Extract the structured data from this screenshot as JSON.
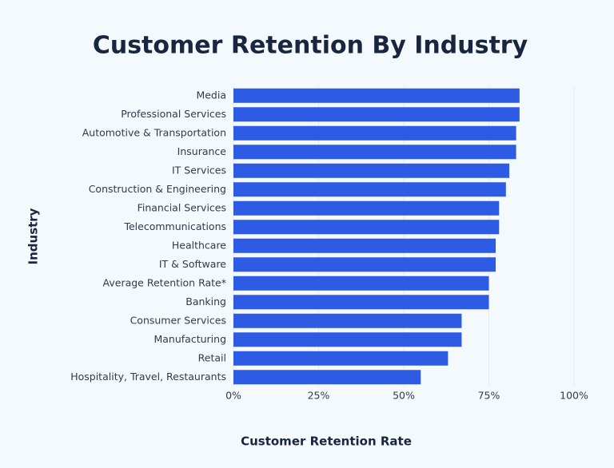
{
  "chart_data": {
    "type": "bar",
    "title": "Customer Retention By Industry",
    "xlabel": "Customer Retention Rate",
    "ylabel": "Industry",
    "categories": [
      "Media",
      "Professional Services",
      "Automotive & Transportation",
      "Insurance",
      "IT Services",
      "Construction & Engineering",
      "Financial Services",
      "Telecommunications",
      "Healthcare",
      "IT & Software",
      "Average Retention Rate*",
      "Banking",
      "Consumer Services",
      "Manufacturing",
      "Retail",
      "Hospitality, Travel, Restaurants"
    ],
    "values": [
      84,
      84,
      83,
      83,
      81,
      80,
      78,
      78,
      77,
      77,
      75,
      75,
      67,
      67,
      63,
      55
    ],
    "color": "#2d5be3",
    "xlim": [
      0,
      100
    ],
    "xticks": [
      {
        "value": 0,
        "label": "0%"
      },
      {
        "value": 25,
        "label": "25%"
      },
      {
        "value": 50,
        "label": "50%"
      },
      {
        "value": 75,
        "label": "75%"
      },
      {
        "value": 100,
        "label": "100%"
      }
    ],
    "grid": true
  }
}
